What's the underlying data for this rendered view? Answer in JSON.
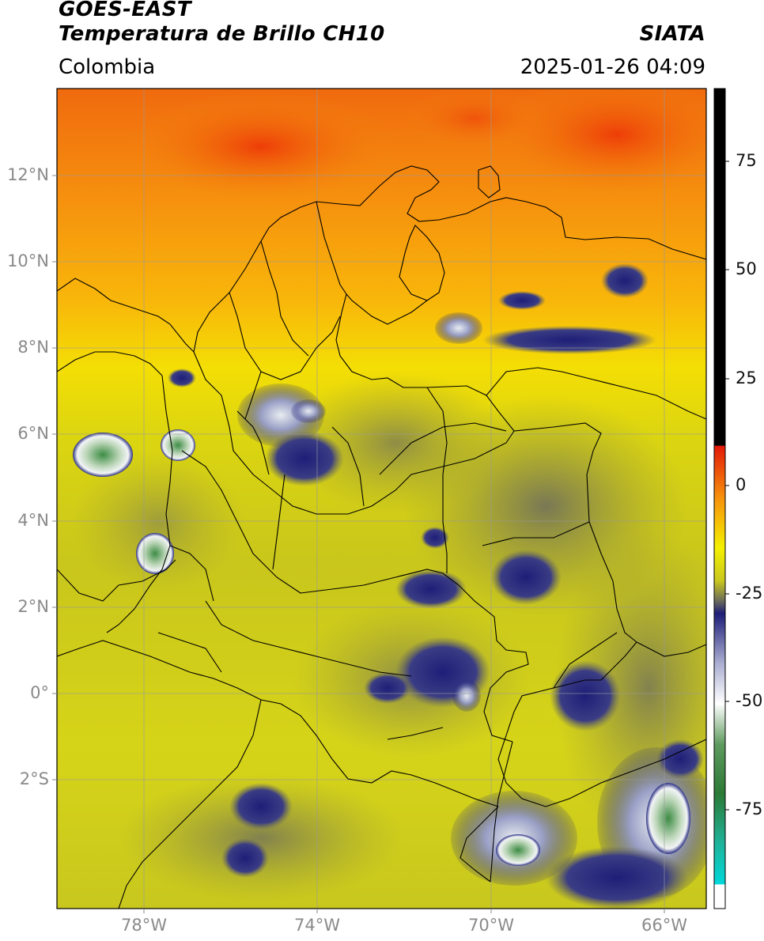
{
  "header": {
    "satellite": "GOES-EAST",
    "product": "Temperatura de Brillo CH10",
    "region": "Colombia",
    "agency": "SIATA",
    "datetime": "2025-01-26 04:09"
  },
  "axes": {
    "lat_ticks": [
      "12°N",
      "10°N",
      "8°N",
      "6°N",
      "4°N",
      "2°N",
      "0°",
      "2°S"
    ],
    "lon_ticks": [
      "78°W",
      "74°W",
      "70°W",
      "66°W"
    ]
  },
  "colorbar": {
    "ticks": [
      "75",
      "50",
      "25",
      "0",
      "-25",
      "-50",
      "-75"
    ],
    "range": [
      -97,
      89
    ],
    "colors": {
      "black": "#000000",
      "red": "#e31a08",
      "orange": "#f7930d",
      "yellow": "#f4f000",
      "olive": "#c9c81e",
      "gray": "#6a6a5c",
      "navy": "#1e1e78",
      "white": "#ffffff",
      "green": "#2c7a36",
      "cyan": "#00d8d8"
    }
  },
  "map": {
    "extent_lon": [
      -80,
      -65
    ],
    "extent_lat": [
      -5,
      14
    ],
    "gridlines": true
  }
}
